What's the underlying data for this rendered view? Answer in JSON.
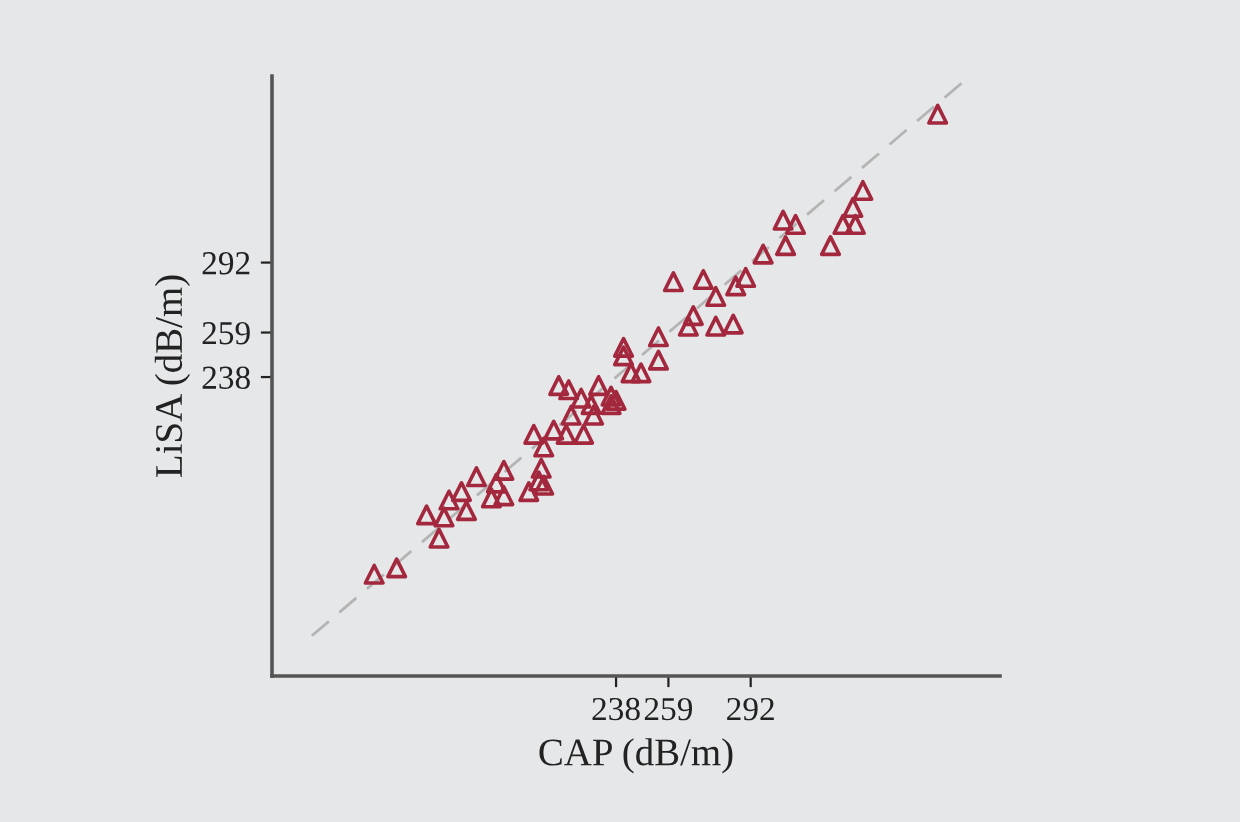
{
  "chart_data": {
    "type": "scatter",
    "xlabel": "CAP (dB/m)",
    "ylabel": "LiSA (dB/m)",
    "xlim": [
      100,
      392
    ],
    "ylim": [
      97,
      380
    ],
    "xticks": [
      238,
      259,
      292
    ],
    "yticks": [
      238,
      259,
      292
    ],
    "grid": false,
    "legend": false,
    "series": [
      {
        "type": "line",
        "color": "#b4b4b4",
        "line_style": "dashed",
        "marker": "none",
        "x": [
          116,
          378
        ],
        "values": [
          116,
          378
        ]
      },
      {
        "color": "#a3283e",
        "marker": "triangle",
        "x": [
          141,
          150,
          162,
          169,
          167,
          171,
          178,
          176,
          182,
          188,
          193,
          193,
          190,
          203,
          207,
          209,
          208,
          209,
          205,
          213,
          218,
          225,
          220,
          229,
          224,
          228,
          215,
          219,
          231,
          236,
          236,
          238,
          244,
          248,
          255,
          241,
          241,
          255,
          261,
          267,
          269,
          273,
          278,
          285,
          278,
          286,
          290,
          297,
          305,
          310,
          306,
          324,
          329,
          334,
          333,
          337,
          367
        ],
        "values": [
          145,
          148,
          173,
          172,
          162,
          180,
          175,
          184,
          191,
          181,
          182,
          194,
          188,
          184,
          189,
          187,
          195,
          205,
          211,
          213,
          211,
          211,
          220,
          220,
          228,
          225,
          234,
          232,
          234,
          229,
          225,
          227,
          240,
          240,
          246,
          252,
          248,
          257,
          283,
          262,
          267,
          284,
          262,
          263,
          276,
          281,
          285,
          296,
          312,
          310,
          300,
          300,
          310,
          310,
          318,
          326,
          362
        ]
      }
    ]
  }
}
